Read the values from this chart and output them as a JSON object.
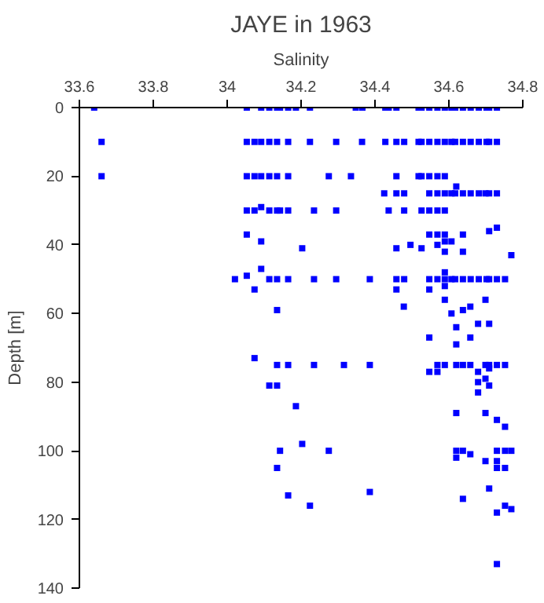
{
  "chart_data": {
    "type": "scatter",
    "title": "JAYE in 1963",
    "xlabel": "Salinity",
    "ylabel": "Depth [m]",
    "marker": "square",
    "xlim": [
      33.6,
      34.8
    ],
    "xticks": [
      33.6,
      33.8,
      34,
      34.2,
      34.4,
      34.6,
      34.8
    ],
    "ylim": [
      140,
      0
    ],
    "yticks": [
      0,
      20,
      40,
      60,
      80,
      100,
      120,
      140
    ],
    "series": [
      {
        "color": "#0000ff",
        "x": [
          33.64,
          34.053,
          34.092,
          34.114,
          34.135,
          34.143,
          34.165,
          34.186,
          34.224,
          34.348,
          34.366,
          34.428,
          34.437,
          34.458,
          34.518,
          34.526,
          34.547,
          34.569,
          34.589,
          34.607,
          34.617,
          34.638,
          34.659,
          34.681,
          34.702,
          34.709,
          34.73,
          33.66,
          34.053,
          34.074,
          34.092,
          34.114,
          34.135,
          34.165,
          34.224,
          34.295,
          34.365,
          34.428,
          34.458,
          34.479,
          34.518,
          34.526,
          34.547,
          34.569,
          34.589,
          34.607,
          34.617,
          34.638,
          34.659,
          34.681,
          34.702,
          34.709,
          34.73,
          33.66,
          34.053,
          34.074,
          34.092,
          34.114,
          34.135,
          34.165,
          34.275,
          34.335,
          34.458,
          34.518,
          34.526,
          34.547,
          34.569,
          34.589,
          34.62,
          34.425,
          34.458,
          34.479,
          34.547,
          34.569,
          34.589,
          34.607,
          34.617,
          34.638,
          34.659,
          34.681,
          34.699,
          34.709,
          34.73,
          34.053,
          34.074,
          34.114,
          34.135,
          34.143,
          34.165,
          34.235,
          34.295,
          34.437,
          34.479,
          34.526,
          34.547,
          34.569,
          34.589,
          34.092,
          34.73,
          34.709,
          34.053,
          34.547,
          34.569,
          34.589,
          34.638,
          34.092,
          34.589,
          34.607,
          34.569,
          34.496,
          34.203,
          34.458,
          34.526,
          34.589,
          34.638,
          34.769,
          34.092,
          34.053,
          34.021,
          34.114,
          34.135,
          34.165,
          34.235,
          34.295,
          34.386,
          34.458,
          34.479,
          34.547,
          34.569,
          34.589,
          34.607,
          34.617,
          34.638,
          34.659,
          34.681,
          34.702,
          34.709,
          34.73,
          34.752,
          34.589,
          34.589,
          34.074,
          34.458,
          34.547,
          34.589,
          34.699,
          34.478,
          34.658,
          34.638,
          34.135,
          34.607,
          34.679,
          34.709,
          34.62,
          34.547,
          34.658,
          34.62,
          34.074,
          34.135,
          34.165,
          34.235,
          34.316,
          34.386,
          34.569,
          34.589,
          34.62,
          34.638,
          34.658,
          34.699,
          34.709,
          34.73,
          34.752,
          34.547,
          34.569,
          34.679,
          34.709,
          34.699,
          34.679,
          34.114,
          34.135,
          34.709,
          34.679,
          34.186,
          34.62,
          34.699,
          34.73,
          34.752,
          34.203,
          34.143,
          34.275,
          34.62,
          34.638,
          34.73,
          34.752,
          34.769,
          34.658,
          34.62,
          34.699,
          34.73,
          34.135,
          34.73,
          34.752,
          34.709,
          34.386,
          34.165,
          34.638,
          34.224,
          34.752,
          34.769,
          34.73,
          34.73
        ],
        "values": [
          0,
          0,
          0,
          0,
          0,
          0,
          0,
          0,
          0,
          0,
          0,
          0,
          0,
          0,
          0,
          0,
          0,
          0,
          0,
          0,
          0,
          0,
          0,
          0,
          0,
          0,
          0,
          10,
          10,
          10,
          10,
          10,
          10,
          10,
          10,
          10,
          10,
          10,
          10,
          10,
          10,
          10,
          10,
          10,
          10,
          10,
          10,
          10,
          10,
          10,
          10,
          10,
          10,
          20,
          20,
          20,
          20,
          20,
          20,
          20,
          20,
          20,
          20,
          20,
          20,
          20,
          20,
          20,
          23,
          25,
          25,
          25,
          25,
          25,
          25,
          25,
          25,
          25,
          25,
          25,
          25,
          25,
          25,
          30,
          30,
          30,
          30,
          30,
          30,
          30,
          30,
          30,
          30,
          30,
          30,
          30,
          30,
          29,
          35,
          36,
          37,
          37,
          37,
          37,
          37,
          39,
          39,
          39,
          40,
          40,
          41,
          41,
          41,
          42,
          42,
          43,
          47,
          49,
          50,
          50,
          50,
          50,
          50,
          50,
          50,
          50,
          50,
          50,
          50,
          50,
          50,
          50,
          50,
          50,
          50,
          50,
          50,
          50,
          50,
          48,
          52,
          53,
          53,
          53,
          56,
          56,
          58,
          58,
          59,
          59,
          60,
          63,
          63,
          64,
          67,
          67,
          69,
          73,
          75,
          75,
          75,
          75,
          75,
          75,
          75,
          75,
          75,
          75,
          75,
          75,
          75,
          75,
          77,
          77,
          77,
          76,
          79,
          80,
          81,
          81,
          81,
          83,
          87,
          89,
          89,
          91,
          93,
          98,
          100,
          100,
          100,
          100,
          100,
          100,
          100,
          101,
          102,
          103,
          103,
          105,
          105,
          105,
          111,
          112,
          113,
          114,
          116,
          116,
          117,
          118,
          133
        ]
      }
    ]
  }
}
